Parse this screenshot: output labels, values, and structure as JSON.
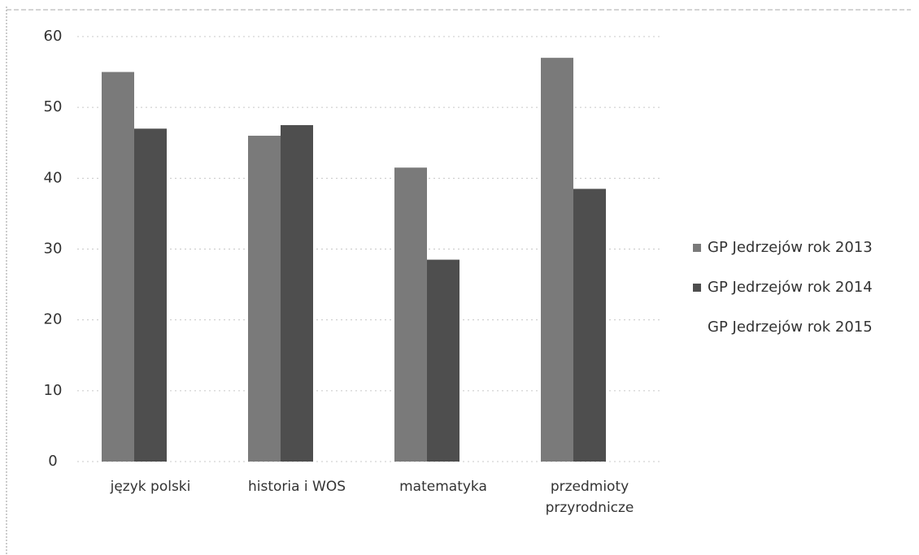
{
  "chart_data": {
    "type": "bar",
    "categories": [
      "język polski",
      "historia i WOS",
      "matematyka",
      "przedmioty przyrodnicze"
    ],
    "series": [
      {
        "name": "GP Jedrzejów rok 2013",
        "color": "#7a7a7a",
        "values": [
          55,
          46,
          41.5,
          57
        ]
      },
      {
        "name": "GP Jedrzejów rok 2014",
        "color": "#4e4e4e",
        "values": [
          47,
          47.5,
          28.5,
          38.5
        ]
      },
      {
        "name": "GP Jedrzejów rok 2015",
        "color": "#ffffff",
        "values": [
          null,
          null,
          null,
          null
        ]
      }
    ],
    "ylim": [
      0,
      60
    ],
    "yticks": [
      0,
      10,
      20,
      30,
      40,
      50,
      60
    ],
    "grid": true,
    "legend": "right"
  }
}
